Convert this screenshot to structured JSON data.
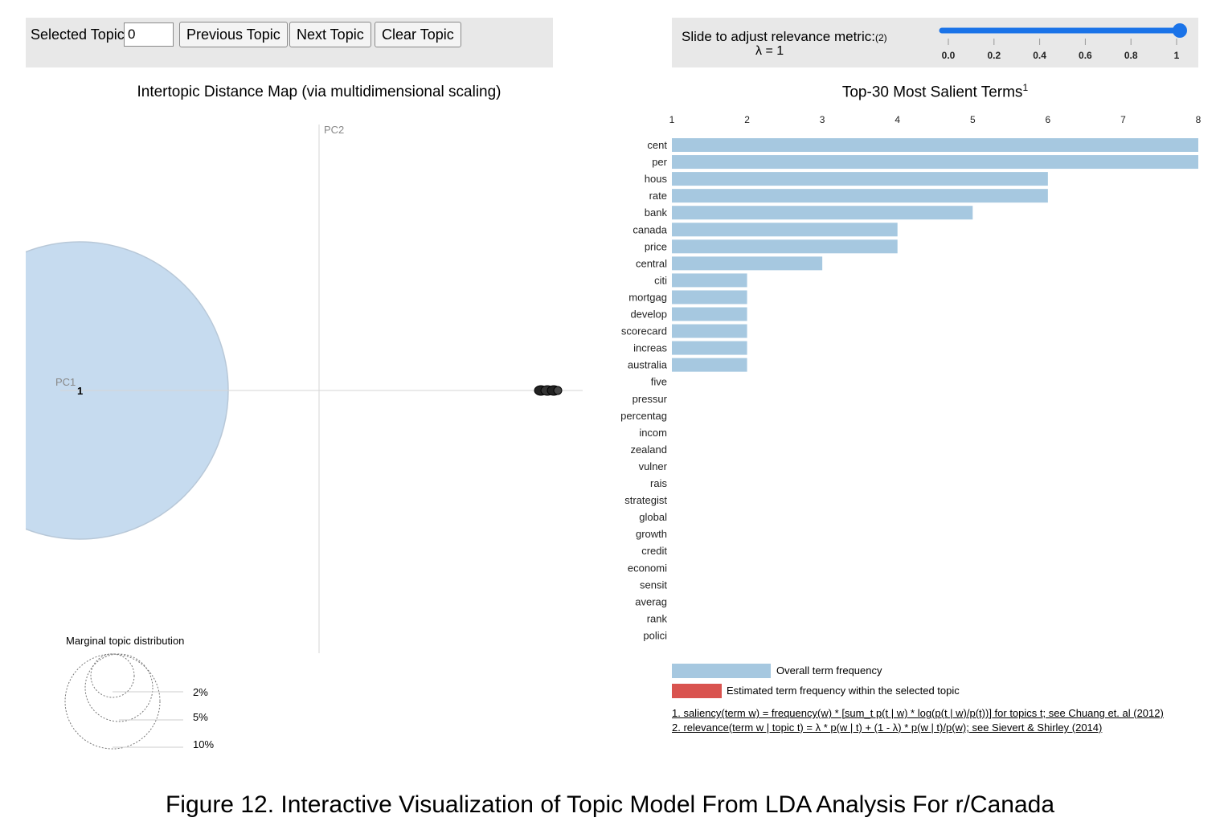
{
  "controls": {
    "selected_topic_label": "Selected Topic:",
    "selected_topic_value": "0",
    "previous_label": "Previous Topic",
    "next_label": "Next Topic",
    "clear_label": "Clear Topic"
  },
  "slider": {
    "label": "Slide to adjust relevance metric:",
    "label_note": "(2)",
    "lambda_text": "λ = 1",
    "value": 1,
    "ticks": [
      "0.0",
      "0.2",
      "0.4",
      "0.6",
      "0.8",
      "1"
    ],
    "color": "#1a73e8"
  },
  "left_panel": {
    "title": "Intertopic Distance Map (via multidimensional scaling)",
    "pc1_label": "PC1",
    "pc2_label": "PC2",
    "topic_number": "1",
    "marginal_title": "Marginal topic distribution",
    "marginal_labels": [
      "2%",
      "5%",
      "10%"
    ],
    "circle_color": "#c6dbef"
  },
  "chart_data": {
    "type": "bar",
    "title": "Top-30 Most Salient Terms",
    "title_sup": "1",
    "x_ticks": [
      "1",
      "2",
      "3",
      "4",
      "5",
      "6",
      "7",
      "8"
    ],
    "xlim": [
      1,
      8
    ],
    "terms": [
      "cent",
      "per",
      "hous",
      "rate",
      "bank",
      "canada",
      "price",
      "central",
      "citi",
      "mortgag",
      "develop",
      "scorecard",
      "increas",
      "australia",
      "five",
      "pressur",
      "percentag",
      "incom",
      "zealand",
      "vulner",
      "rais",
      "strategist",
      "global",
      "growth",
      "credit",
      "economi",
      "sensit",
      "averag",
      "rank",
      "polici"
    ],
    "values": [
      8,
      8,
      6,
      6,
      5,
      4,
      4,
      3,
      2,
      2,
      2,
      2,
      2,
      2,
      1,
      1,
      1,
      1,
      1,
      1,
      1,
      1,
      1,
      1,
      1,
      1,
      1,
      1,
      1,
      1
    ],
    "bar_color": "#a6c8e0",
    "selected_color": "#d9534f"
  },
  "legend": {
    "overall": "Overall term frequency",
    "estimated": "Estimated term frequency within the selected topic"
  },
  "footnotes": {
    "saliency": "1. saliency(term w) = frequency(w) * [sum_t p(t | w) * log(p(t | w)/p(t))] for topics t; see Chuang et. al (2012)",
    "relevance": "2. relevance(term w | topic t) = λ * p(w | t) + (1 - λ) * p(w | t)/p(w); see Sievert & Shirley (2014)"
  },
  "caption": "Figure 12. Interactive Visualization of Topic Model From LDA Analysis For r/Canada"
}
